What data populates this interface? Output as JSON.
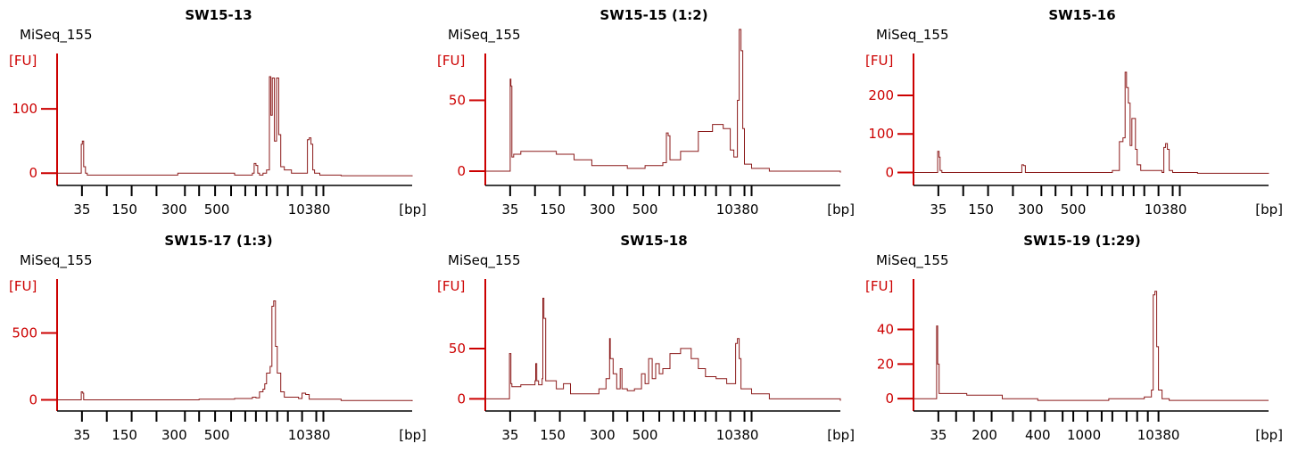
{
  "colors": {
    "trace": "#8b1a1a",
    "axis_y": "#cc0000",
    "axis_x": "#000000"
  },
  "chart_data": [
    {
      "type": "line",
      "title": "SW15-13",
      "run_label": "MiSeq_155",
      "ylabel": "[FU]",
      "xlabel": "[bp]",
      "ylim": [
        -8,
        175
      ],
      "yticks": [
        0,
        100
      ],
      "marker_positions": [
        0.07,
        0.14,
        0.21,
        0.28,
        0.36,
        0.4,
        0.445,
        0.49,
        0.53,
        0.56,
        0.59,
        0.62,
        0.65,
        0.69,
        0.73,
        0.75
      ],
      "xtick_labels": [
        {
          "pos": 0.07,
          "label": "35"
        },
        {
          "pos": 0.19,
          "label": "150"
        },
        {
          "pos": 0.33,
          "label": "300"
        },
        {
          "pos": 0.45,
          "label": "500"
        },
        {
          "pos": 0.71,
          "label": "10380"
        }
      ],
      "series": [
        {
          "x": [
            0,
            0.06,
            0.068,
            0.071,
            0.075,
            0.08,
            0.085,
            0.2,
            0.33,
            0.34,
            0.5,
            0.55,
            0.555,
            0.56,
            0.565,
            0.57,
            0.58,
            0.59,
            0.598,
            0.602,
            0.606,
            0.612,
            0.618,
            0.624,
            0.63,
            0.64,
            0.66,
            0.7,
            0.705,
            0.71,
            0.715,
            0.72,
            0.725,
            0.74,
            0.8,
            1
          ],
          "y": [
            0,
            0,
            45,
            50,
            10,
            0,
            -3,
            -3,
            -3,
            0,
            -3,
            0,
            15,
            12,
            0,
            -3,
            0,
            5,
            150,
            90,
            148,
            50,
            148,
            60,
            10,
            5,
            0,
            0,
            52,
            55,
            45,
            5,
            0,
            -3,
            -4,
            -5
          ]
        }
      ]
    },
    {
      "type": "line",
      "title": "SW15-15 (1:2)",
      "run_label": "MiSeq_155",
      "ylabel": "[FU]",
      "xlabel": "[bp]",
      "ylim": [
        -5,
        78
      ],
      "yticks": [
        0,
        50
      ],
      "marker_positions": [
        0.07,
        0.14,
        0.21,
        0.28,
        0.36,
        0.4,
        0.445,
        0.49,
        0.53,
        0.56,
        0.59,
        0.62,
        0.65,
        0.69,
        0.73,
        0.75
      ],
      "xtick_labels": [
        {
          "pos": 0.07,
          "label": "35"
        },
        {
          "pos": 0.19,
          "label": "150"
        },
        {
          "pos": 0.33,
          "label": "300"
        },
        {
          "pos": 0.45,
          "label": "500"
        },
        {
          "pos": 0.71,
          "label": "10380"
        }
      ],
      "series": [
        {
          "x": [
            0,
            0.065,
            0.07,
            0.072,
            0.075,
            0.08,
            0.1,
            0.15,
            0.2,
            0.25,
            0.3,
            0.4,
            0.45,
            0.5,
            0.51,
            0.515,
            0.52,
            0.55,
            0.6,
            0.64,
            0.67,
            0.69,
            0.7,
            0.71,
            0.715,
            0.72,
            0.725,
            0.73,
            0.75,
            0.8,
            1
          ],
          "y": [
            0,
            0,
            65,
            60,
            10,
            12,
            14,
            14,
            12,
            8,
            4,
            2,
            4,
            6,
            27,
            25,
            8,
            14,
            28,
            33,
            30,
            15,
            10,
            50,
            100,
            85,
            30,
            5,
            2,
            0,
            -1
          ]
        }
      ]
    },
    {
      "type": "line",
      "title": "SW15-16",
      "run_label": "MiSeq_155",
      "ylabel": "[FU]",
      "xlabel": "[bp]",
      "ylim": [
        -15,
        290
      ],
      "yticks": [
        0,
        100,
        200
      ],
      "marker_positions": [
        0.07,
        0.14,
        0.21,
        0.28,
        0.36,
        0.4,
        0.445,
        0.49,
        0.53,
        0.56,
        0.59,
        0.62,
        0.65,
        0.69,
        0.73,
        0.75
      ],
      "xtick_labels": [
        {
          "pos": 0.07,
          "label": "35"
        },
        {
          "pos": 0.19,
          "label": "150"
        },
        {
          "pos": 0.33,
          "label": "300"
        },
        {
          "pos": 0.45,
          "label": "500"
        },
        {
          "pos": 0.71,
          "label": "10380"
        }
      ],
      "series": [
        {
          "x": [
            0,
            0.065,
            0.068,
            0.072,
            0.075,
            0.08,
            0.2,
            0.3,
            0.305,
            0.31,
            0.315,
            0.5,
            0.56,
            0.58,
            0.59,
            0.596,
            0.6,
            0.605,
            0.61,
            0.615,
            0.62,
            0.625,
            0.63,
            0.64,
            0.7,
            0.705,
            0.71,
            0.715,
            0.72,
            0.73,
            0.8,
            1
          ],
          "y": [
            0,
            0,
            55,
            40,
            5,
            0,
            0,
            0,
            20,
            18,
            0,
            0,
            5,
            80,
            90,
            260,
            220,
            180,
            70,
            140,
            140,
            60,
            20,
            5,
            0,
            65,
            75,
            60,
            5,
            0,
            -2,
            -3
          ]
        }
      ]
    },
    {
      "type": "line",
      "title": "SW15-17 (1:3)",
      "run_label": "MiSeq_155",
      "ylabel": "[FU]",
      "xlabel": "[bp]",
      "ylim": [
        -30,
        850
      ],
      "yticks": [
        0,
        500
      ],
      "marker_positions": [
        0.07,
        0.14,
        0.21,
        0.28,
        0.36,
        0.4,
        0.445,
        0.49,
        0.53,
        0.56,
        0.59,
        0.62,
        0.65,
        0.69,
        0.73,
        0.75
      ],
      "xtick_labels": [
        {
          "pos": 0.07,
          "label": "35"
        },
        {
          "pos": 0.19,
          "label": "150"
        },
        {
          "pos": 0.33,
          "label": "300"
        },
        {
          "pos": 0.45,
          "label": "500"
        },
        {
          "pos": 0.71,
          "label": "10380"
        }
      ],
      "series": [
        {
          "x": [
            0,
            0.065,
            0.068,
            0.072,
            0.075,
            0.2,
            0.4,
            0.5,
            0.55,
            0.56,
            0.57,
            0.58,
            0.585,
            0.59,
            0.6,
            0.605,
            0.61,
            0.615,
            0.62,
            0.63,
            0.64,
            0.68,
            0.69,
            0.7,
            0.71,
            0.8,
            1
          ],
          "y": [
            0,
            0,
            60,
            50,
            0,
            0,
            5,
            10,
            20,
            15,
            60,
            80,
            120,
            200,
            250,
            700,
            740,
            400,
            200,
            60,
            20,
            10,
            50,
            40,
            5,
            -5,
            -10
          ]
        }
      ]
    },
    {
      "type": "line",
      "title": "SW15-18",
      "run_label": "MiSeq_155",
      "ylabel": "[FU]",
      "xlabel": "[bp]",
      "ylim": [
        -5,
        112
      ],
      "yticks": [
        0,
        50
      ],
      "marker_positions": [
        0.07,
        0.14,
        0.21,
        0.28,
        0.36,
        0.4,
        0.445,
        0.49,
        0.53,
        0.56,
        0.59,
        0.62,
        0.65,
        0.69,
        0.73,
        0.75
      ],
      "xtick_labels": [
        {
          "pos": 0.07,
          "label": "35"
        },
        {
          "pos": 0.19,
          "label": "150"
        },
        {
          "pos": 0.33,
          "label": "300"
        },
        {
          "pos": 0.45,
          "label": "500"
        },
        {
          "pos": 0.71,
          "label": "10380"
        }
      ],
      "series": [
        {
          "x": [
            0,
            0.06,
            0.068,
            0.072,
            0.075,
            0.1,
            0.12,
            0.14,
            0.142,
            0.145,
            0.15,
            0.16,
            0.162,
            0.165,
            0.17,
            0.2,
            0.22,
            0.24,
            0.26,
            0.3,
            0.32,
            0.34,
            0.35,
            0.352,
            0.36,
            0.37,
            0.38,
            0.385,
            0.4,
            0.42,
            0.44,
            0.45,
            0.46,
            0.47,
            0.48,
            0.49,
            0.5,
            0.52,
            0.55,
            0.58,
            0.6,
            0.62,
            0.65,
            0.68,
            0.7,
            0.705,
            0.71,
            0.715,
            0.72,
            0.75,
            0.8,
            1
          ],
          "y": [
            0,
            0,
            45,
            15,
            12,
            14,
            14,
            18,
            35,
            18,
            14,
            20,
            100,
            80,
            18,
            10,
            15,
            5,
            5,
            5,
            10,
            20,
            60,
            40,
            25,
            10,
            30,
            10,
            8,
            10,
            25,
            15,
            40,
            20,
            35,
            25,
            30,
            45,
            50,
            40,
            30,
            22,
            20,
            15,
            15,
            55,
            60,
            40,
            10,
            5,
            0,
            -2
          ]
        }
      ]
    },
    {
      "type": "line",
      "title": "SW15-19 (1:29)",
      "run_label": "MiSeq_155",
      "ylabel": "[FU]",
      "xlabel": "[bp]",
      "ylim": [
        -3,
        65
      ],
      "yticks": [
        0,
        20,
        40
      ],
      "marker_positions": [
        0.07,
        0.12,
        0.17,
        0.22,
        0.28,
        0.33,
        0.37,
        0.42,
        0.45,
        0.49,
        0.53,
        0.56,
        0.6,
        0.63,
        0.66,
        0.69
      ],
      "xtick_labels": [
        {
          "pos": 0.07,
          "label": "35"
        },
        {
          "pos": 0.2,
          "label": "200"
        },
        {
          "pos": 0.35,
          "label": "400"
        },
        {
          "pos": 0.48,
          "label": "1000"
        },
        {
          "pos": 0.69,
          "label": "10380"
        }
      ],
      "series": [
        {
          "x": [
            0,
            0.06,
            0.065,
            0.068,
            0.072,
            0.08,
            0.15,
            0.25,
            0.35,
            0.45,
            0.55,
            0.6,
            0.65,
            0.67,
            0.675,
            0.68,
            0.685,
            0.69,
            0.7,
            0.72,
            0.8,
            1
          ],
          "y": [
            0,
            0,
            42,
            20,
            3,
            3,
            2,
            0,
            -1,
            -1,
            0,
            0,
            1,
            5,
            60,
            62,
            30,
            5,
            0,
            -1,
            -1,
            -1
          ]
        }
      ]
    }
  ]
}
